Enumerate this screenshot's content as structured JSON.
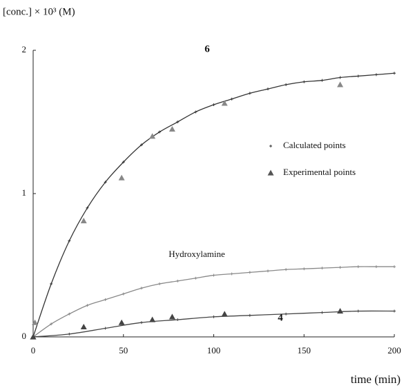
{
  "chart_data": {
    "type": "line",
    "y_label": "[conc.] × 10³ (M)",
    "x_label": "time (min)",
    "xlim": [
      0,
      200
    ],
    "xticks": [
      0,
      50,
      100,
      150,
      200
    ],
    "ylim": [
      0,
      2
    ],
    "yticks": [
      0,
      1,
      2
    ],
    "legend": {
      "calculated": "Calculated points",
      "experimental": "Experimental points",
      "experimental_color": "#555555"
    },
    "series": [
      {
        "name": "6",
        "color": "#333333",
        "x": [
          0,
          10,
          20,
          30,
          40,
          50,
          60,
          70,
          80,
          90,
          100,
          110,
          120,
          130,
          140,
          150,
          160,
          170,
          180,
          190,
          200
        ],
        "values": [
          0,
          0.37,
          0.67,
          0.9,
          1.08,
          1.22,
          1.34,
          1.43,
          1.5,
          1.57,
          1.62,
          1.66,
          1.7,
          1.73,
          1.76,
          1.78,
          1.79,
          1.81,
          1.82,
          1.83,
          1.84
        ],
        "experimental": {
          "color": "#888888",
          "x": [
            0,
            1,
            28,
            49,
            66,
            77,
            106,
            170
          ],
          "values": [
            0,
            0.1,
            0.81,
            1.11,
            1.4,
            1.45,
            1.63,
            1.76
          ]
        }
      },
      {
        "name": "Hydroxylamine",
        "color": "#888888",
        "x": [
          0,
          10,
          20,
          30,
          40,
          50,
          60,
          70,
          80,
          90,
          100,
          110,
          120,
          130,
          140,
          150,
          160,
          170,
          180,
          190,
          200
        ],
        "values": [
          0,
          0.09,
          0.16,
          0.22,
          0.26,
          0.3,
          0.34,
          0.37,
          0.39,
          0.41,
          0.43,
          0.44,
          0.45,
          0.46,
          0.47,
          0.475,
          0.48,
          0.485,
          0.49,
          0.49,
          0.49
        ]
      },
      {
        "name": "4",
        "color": "#444444",
        "x": [
          0,
          20,
          40,
          60,
          80,
          100,
          120,
          140,
          160,
          180,
          200
        ],
        "values": [
          0,
          0.02,
          0.06,
          0.1,
          0.12,
          0.14,
          0.15,
          0.16,
          0.17,
          0.18,
          0.18
        ],
        "experimental": {
          "color": "#444444",
          "x": [
            0,
            28,
            49,
            66,
            77,
            106,
            170
          ],
          "values": [
            0,
            0.07,
            0.1,
            0.12,
            0.14,
            0.16,
            0.18
          ]
        }
      }
    ]
  }
}
